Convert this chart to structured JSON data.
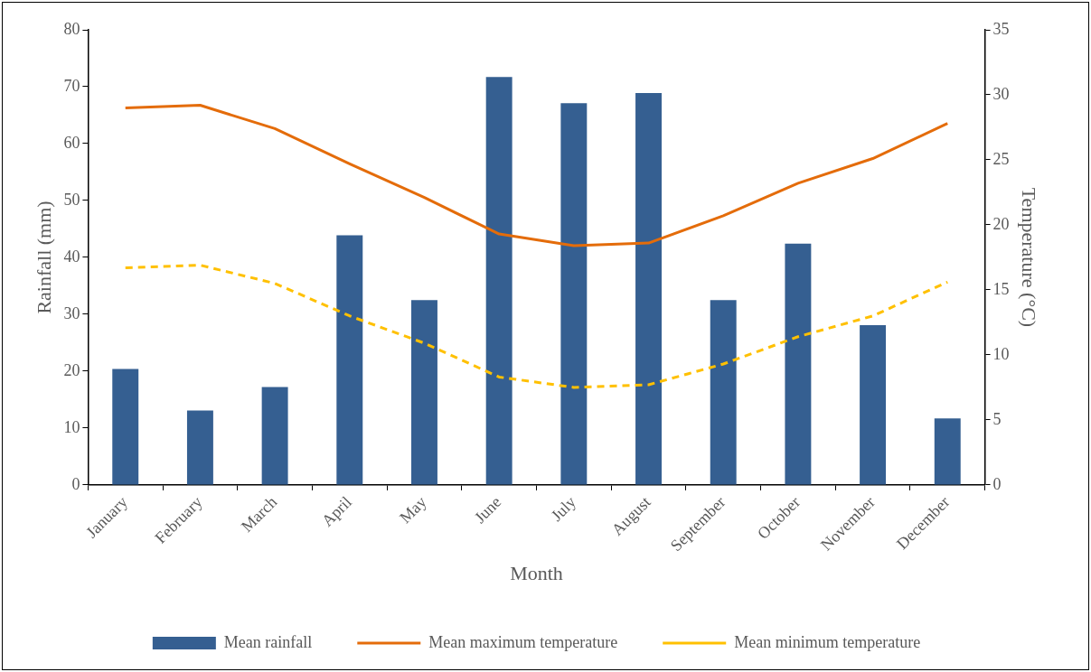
{
  "chart_data": {
    "type": "bar",
    "xlabel": "Month",
    "ylabel": "Rainfall (mm)",
    "y2label": "Temperature (°C)",
    "categories": [
      "January",
      "February",
      "March",
      "April",
      "May",
      "June",
      "July",
      "August",
      "September",
      "October",
      "November",
      "December"
    ],
    "series": [
      {
        "name": "Mean rainfall",
        "color": "#355f91",
        "values": [
          20.4,
          13.1,
          17.2,
          43.9,
          32.5,
          71.7,
          67.1,
          68.9,
          32.5,
          42.4,
          28.1,
          11.7
        ]
      },
      {
        "name": "Mean maximum temperature",
        "type": "line",
        "axis": "y2",
        "color": "#e46c0a",
        "line_style": "solid",
        "values": [
          29.0,
          29.2,
          27.4,
          24.7,
          22.1,
          19.3,
          18.4,
          18.6,
          20.7,
          23.2,
          25.1,
          27.8
        ]
      },
      {
        "name": "Mean minimum temperature",
        "type": "line",
        "axis": "y2",
        "color": "#ffc000",
        "line_style": "dashed",
        "values": [
          16.7,
          16.9,
          15.5,
          13.0,
          10.9,
          8.3,
          7.5,
          7.7,
          9.3,
          11.4,
          13.0,
          15.6
        ]
      }
    ],
    "ylim": [
      0,
      80
    ],
    "yticks": [
      0,
      10,
      20,
      30,
      40,
      50,
      60,
      70,
      80
    ],
    "y2lim": [
      0,
      35
    ],
    "y2ticks": [
      0,
      5,
      10,
      15,
      20,
      25,
      30,
      35
    ],
    "grid": false,
    "legend": "bottom",
    "marker": "none"
  }
}
